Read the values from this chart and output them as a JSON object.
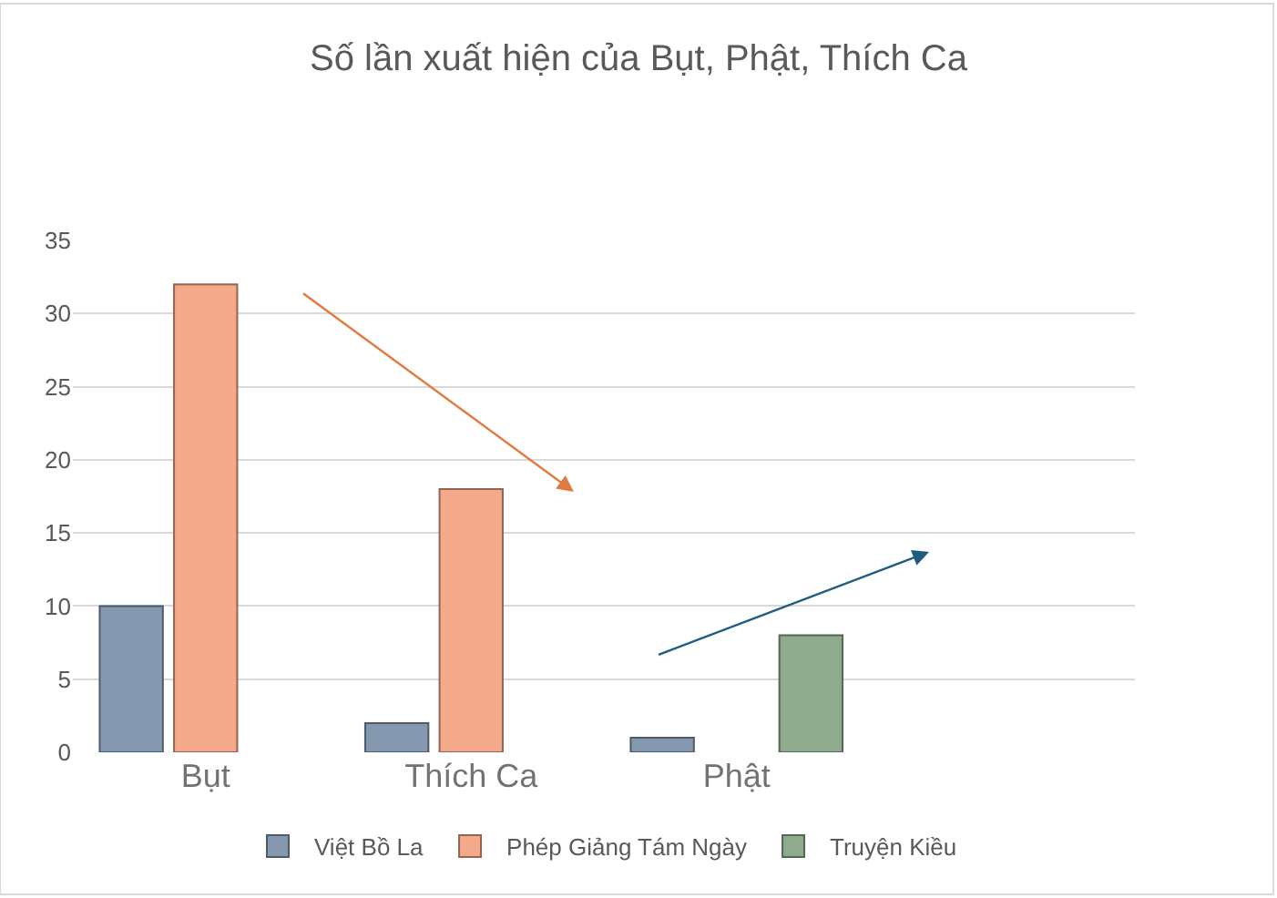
{
  "chart_data": {
    "type": "bar",
    "title": "Số lần xuất hiện của Bụt, Phật, Thích Ca",
    "categories": [
      "Bụt",
      "Thích Ca",
      "Phật",
      null
    ],
    "series": [
      {
        "name": "Việt Bồ La",
        "color": "#8499b0",
        "values": [
          10,
          2,
          1,
          null
        ]
      },
      {
        "name": "Phép Giảng Tám Ngày",
        "color": "#f4a98b",
        "values": [
          32,
          18,
          null,
          null
        ]
      },
      {
        "name": "Truyện Kiều",
        "color": "#8fab8d",
        "values": [
          null,
          null,
          8,
          null
        ]
      }
    ],
    "ylim": [
      0,
      35
    ],
    "yticks": [
      0,
      5,
      10,
      15,
      20,
      25,
      30,
      35
    ],
    "grid": "y",
    "legend": "bottom"
  }
}
